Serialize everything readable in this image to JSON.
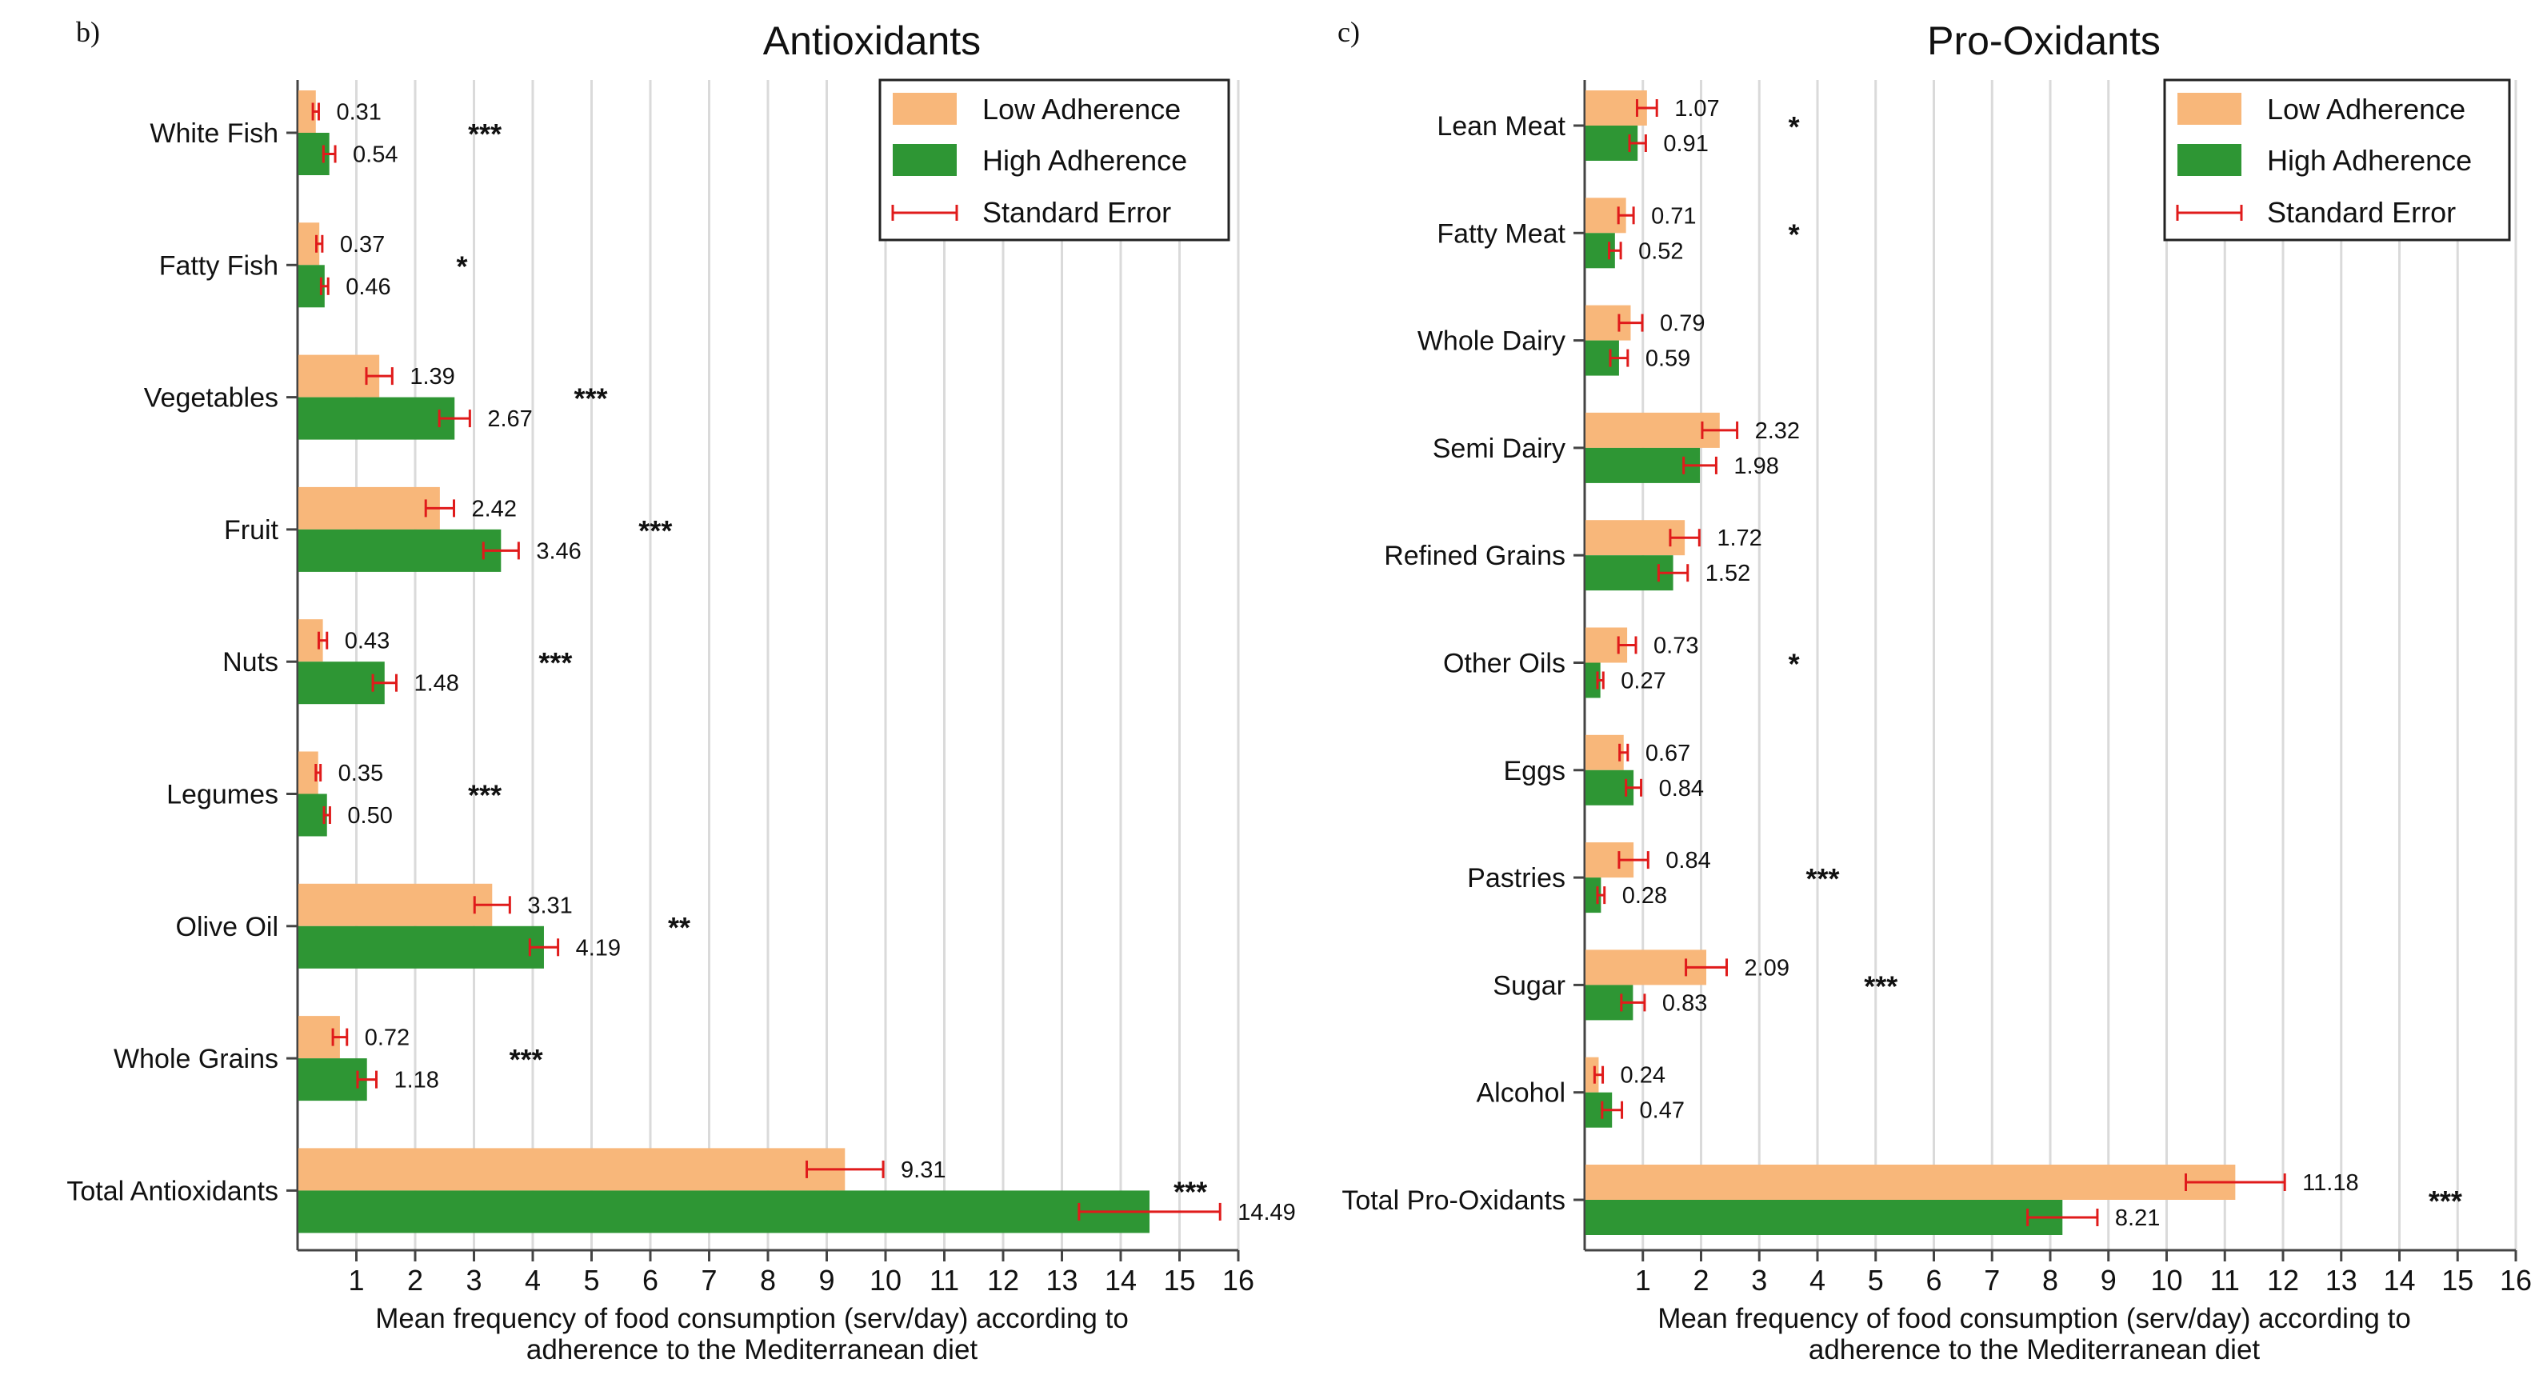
{
  "colors": {
    "low": "#F8B77A",
    "high": "#2E9634",
    "error": "#E01B1B",
    "grid": "#DADADA",
    "axis": "#444444"
  },
  "legend": {
    "low": "Low Adherence",
    "high": "High Adherence",
    "error": "Standard Error"
  },
  "chart_data": [
    {
      "panel": "b)",
      "type": "bar",
      "orientation": "horizontal",
      "title": "Antioxidants",
      "xlabel": [
        "Mean frequency of food consumption (serv/day) according to",
        "adherence to the Mediterranean diet"
      ],
      "xlim": [
        0,
        16
      ],
      "xticks": [
        1,
        2,
        3,
        4,
        5,
        6,
        7,
        8,
        9,
        10,
        11,
        12,
        13,
        14,
        15,
        16
      ],
      "legend_position": "top-right",
      "categories": [
        "White Fish",
        "Fatty Fish",
        "Vegetables",
        "Fruit",
        "Nuts",
        "Legumes",
        "Olive Oil",
        "Whole Grains",
        "Total Antioxidants"
      ],
      "series": [
        {
          "name": "Low Adherence",
          "values": [
            0.31,
            0.37,
            1.39,
            2.42,
            0.43,
            0.35,
            3.31,
            0.72,
            9.31
          ],
          "labels": [
            "0.31",
            "0.37",
            "1.39",
            "2.42",
            "0.43",
            "0.35",
            "3.31",
            "0.72",
            "9.31"
          ],
          "se": [
            0.05,
            0.05,
            0.22,
            0.24,
            0.07,
            0.04,
            0.3,
            0.12,
            0.65
          ]
        },
        {
          "name": "High Adherence",
          "values": [
            0.54,
            0.46,
            2.67,
            3.46,
            1.48,
            0.5,
            4.19,
            1.18,
            14.49
          ],
          "labels": [
            "0.54",
            "0.46",
            "2.67",
            "3.46",
            "1.48",
            "0.50",
            "4.19",
            "1.18",
            "14.49"
          ],
          "se": [
            0.1,
            0.06,
            0.26,
            0.3,
            0.2,
            0.05,
            0.24,
            0.16,
            1.2
          ]
        }
      ],
      "significance": [
        "***",
        "*",
        "***",
        "***",
        "***",
        "***",
        "**",
        "***",
        "***"
      ],
      "significance_x": [
        2.9,
        2.7,
        4.7,
        5.8,
        4.1,
        2.9,
        6.3,
        3.6,
        14.9
      ]
    },
    {
      "panel": "c)",
      "type": "bar",
      "orientation": "horizontal",
      "title": "Pro-Oxidants",
      "xlabel": [
        "Mean frequency of food consumption (serv/day) according to",
        "adherence to the Mediterranean diet"
      ],
      "xlim": [
        0,
        16
      ],
      "xticks": [
        1,
        2,
        3,
        4,
        5,
        6,
        7,
        8,
        9,
        10,
        11,
        12,
        13,
        14,
        15,
        16
      ],
      "legend_position": "top-right",
      "categories": [
        "Lean Meat",
        "Fatty Meat",
        "Whole Dairy",
        "Semi Dairy",
        "Refined Grains",
        "Other Oils",
        "Eggs",
        "Pastries",
        "Sugar",
        "Alcohol",
        "Total Pro-Oxidants"
      ],
      "series": [
        {
          "name": "Low Adherence",
          "values": [
            1.07,
            0.71,
            0.79,
            2.32,
            1.72,
            0.73,
            0.67,
            0.84,
            2.09,
            0.24,
            11.18
          ],
          "labels": [
            "1.07",
            "0.71",
            "0.79",
            "2.32",
            "1.72",
            "0.73",
            "0.67",
            "0.84",
            "2.09",
            "0.24",
            "11.18"
          ],
          "se": [
            0.17,
            0.13,
            0.2,
            0.3,
            0.25,
            0.15,
            0.07,
            0.25,
            0.35,
            0.07,
            0.85
          ]
        },
        {
          "name": "High Adherence",
          "values": [
            0.91,
            0.52,
            0.59,
            1.98,
            1.52,
            0.27,
            0.84,
            0.28,
            0.83,
            0.47,
            8.21
          ],
          "labels": [
            "0.91",
            "0.52",
            "0.59",
            "1.98",
            "1.52",
            "0.27",
            "0.84",
            "0.28",
            "0.83",
            "0.47",
            "8.21"
          ],
          "se": [
            0.14,
            0.1,
            0.15,
            0.28,
            0.25,
            0.05,
            0.13,
            0.06,
            0.2,
            0.17,
            0.6
          ]
        }
      ],
      "significance": [
        "*",
        "*",
        "",
        "",
        "",
        "*",
        "",
        "***",
        "***",
        "",
        "***"
      ],
      "significance_x": [
        3.5,
        3.5,
        0,
        0,
        0,
        3.5,
        0,
        3.8,
        4.8,
        0,
        14.5
      ]
    }
  ]
}
